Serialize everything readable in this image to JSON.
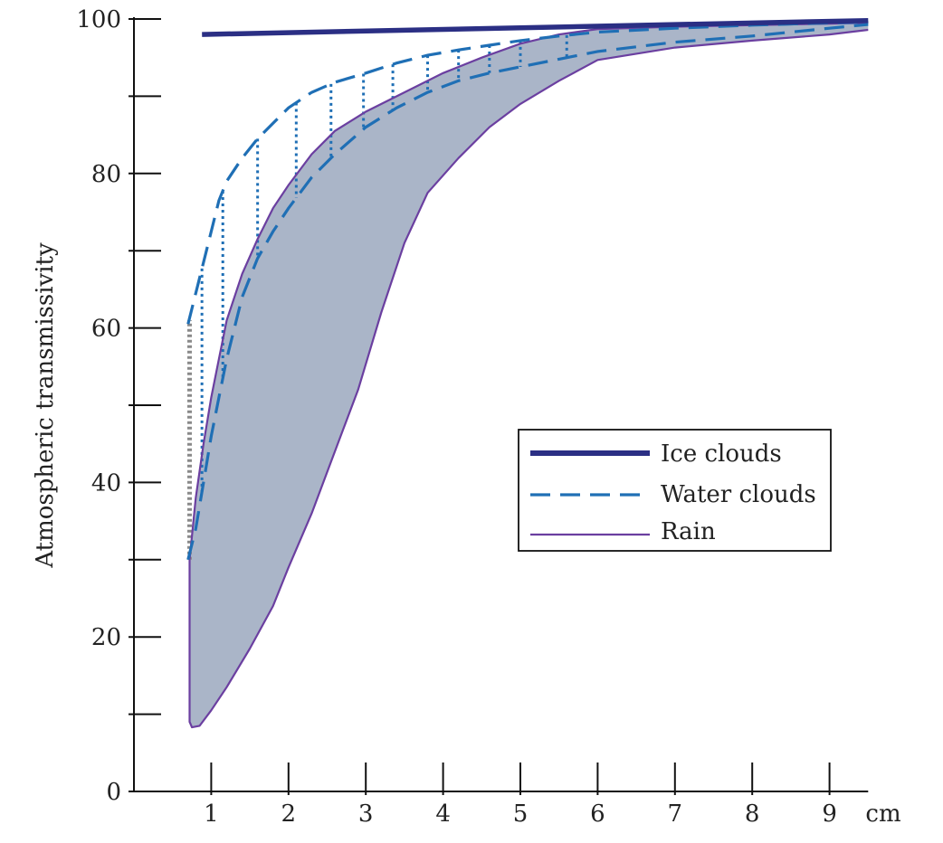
{
  "chart_data": {
    "type": "area",
    "ylabel": "Atmospheric transmissivity",
    "xunit": "cm",
    "xlim": [
      0,
      9.5
    ],
    "ylim": [
      0,
      100
    ],
    "xticks": [
      1,
      2,
      3,
      4,
      5,
      6,
      7,
      8,
      9
    ],
    "yticks": [
      0,
      20,
      40,
      60,
      80,
      100
    ],
    "yminor": [
      10,
      30,
      50,
      70,
      90
    ],
    "legend_position": "center-right",
    "series": [
      {
        "name": "Ice clouds",
        "style": "solid-thick",
        "color": "#2b2f84",
        "x": [
          0.88,
          9.5
        ],
        "y": [
          98.0,
          99.8
        ]
      },
      {
        "name": "Water clouds",
        "style": "dashed",
        "color": "#1f6fb5",
        "upper": {
          "x": [
            0.7,
            0.8,
            0.9,
            1.0,
            1.1,
            1.2,
            1.4,
            1.6,
            1.8,
            2.0,
            2.3,
            2.6,
            3.0,
            3.4,
            3.8,
            4.2,
            4.6,
            5.0,
            5.5,
            6.0,
            7.0,
            8.0,
            9.0,
            9.5
          ],
          "y": [
            60.5,
            64.5,
            68.5,
            72.5,
            76.5,
            79.0,
            82.0,
            84.5,
            86.5,
            88.5,
            90.5,
            91.8,
            93.0,
            94.3,
            95.3,
            96.0,
            96.6,
            97.2,
            97.8,
            98.3,
            98.8,
            99.2,
            99.5,
            99.6
          ]
        },
        "lower": {
          "x": [
            0.7,
            0.8,
            0.9,
            1.0,
            1.1,
            1.2,
            1.4,
            1.6,
            1.8,
            2.0,
            2.3,
            2.6,
            3.0,
            3.4,
            3.8,
            4.2,
            4.6,
            5.0,
            5.5,
            6.0,
            7.0,
            8.0,
            9.0,
            9.5
          ],
          "y": [
            30.0,
            34.0,
            40.0,
            46.0,
            51.0,
            56.0,
            64.0,
            69.0,
            72.5,
            75.5,
            79.5,
            82.5,
            86.0,
            88.5,
            90.5,
            92.0,
            93.0,
            93.8,
            94.8,
            95.8,
            97.0,
            97.8,
            98.8,
            99.3
          ]
        }
      },
      {
        "name": "Rain",
        "style": "solid-thin-filled",
        "color": "#6b3fa0",
        "fill": "#aab5c8",
        "upper": {
          "x": [
            0.72,
            0.8,
            0.9,
            1.0,
            1.1,
            1.2,
            1.4,
            1.6,
            1.8,
            2.0,
            2.3,
            2.6,
            3.0,
            3.5,
            4.0,
            4.5,
            5.0,
            5.5,
            6.0,
            7.0,
            8.0,
            9.0,
            9.5
          ],
          "y": [
            30.0,
            38.0,
            45.0,
            51.0,
            56.0,
            61.0,
            67.0,
            71.5,
            75.5,
            78.5,
            82.5,
            85.5,
            88.0,
            90.5,
            93.0,
            95.0,
            96.8,
            98.0,
            98.7,
            99.0,
            99.2,
            99.4,
            99.5
          ]
        },
        "lower": {
          "x": [
            0.72,
            0.72,
            0.75,
            0.85,
            1.0,
            1.2,
            1.5,
            1.8,
            2.0,
            2.3,
            2.6,
            2.9,
            3.2,
            3.5,
            3.8,
            4.2,
            4.6,
            5.0,
            5.5,
            6.0,
            7.0,
            8.0,
            9.0,
            9.5
          ],
          "y": [
            30.0,
            9.0,
            8.3,
            8.5,
            10.5,
            13.5,
            18.5,
            24.0,
            29.0,
            36.0,
            44.0,
            52.0,
            62.0,
            71.0,
            77.5,
            82.0,
            86.0,
            89.0,
            92.0,
            94.7,
            96.3,
            97.2,
            98.0,
            98.6
          ]
        }
      }
    ],
    "annotation": {
      "type": "vertical-dotted-gray",
      "x": 0.72,
      "y": [
        30,
        61
      ]
    }
  }
}
